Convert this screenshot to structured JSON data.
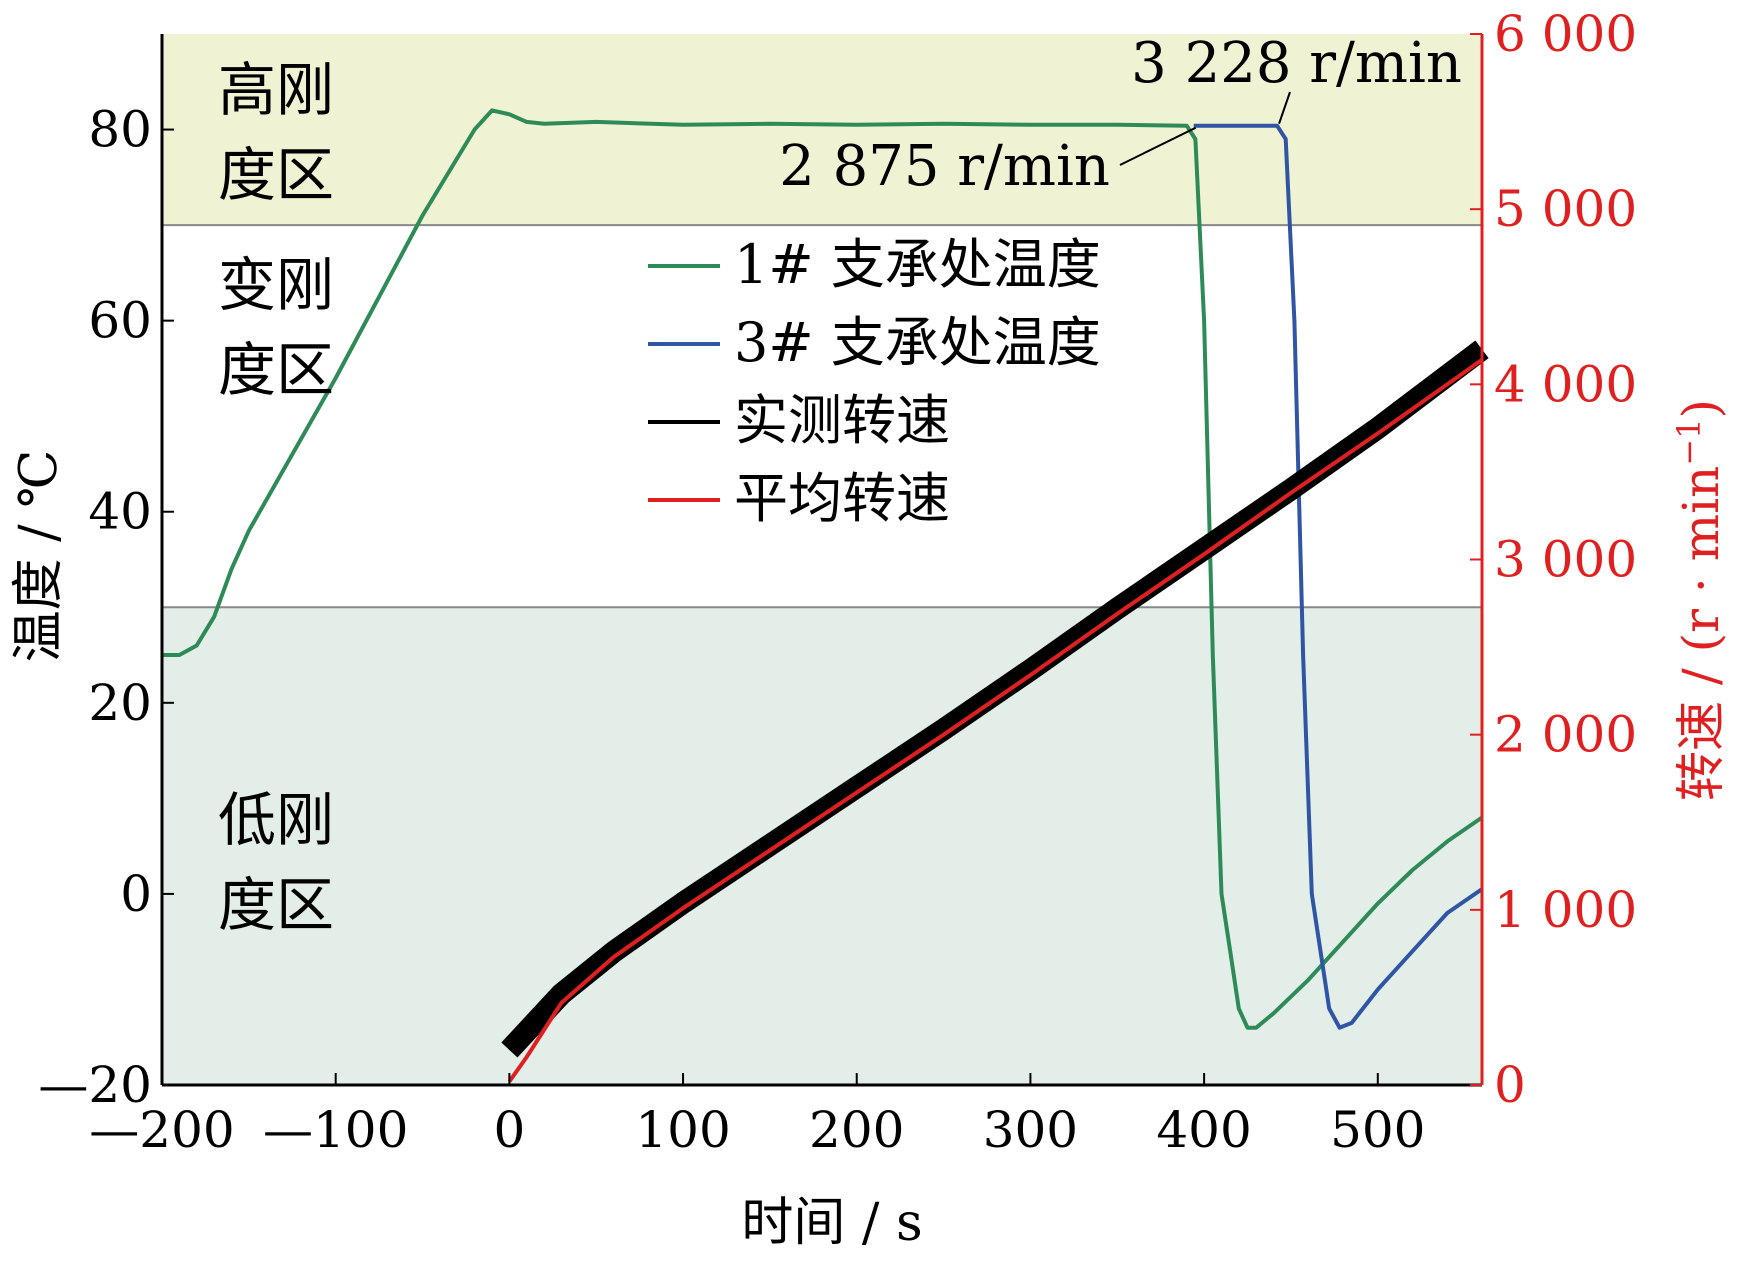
{
  "chart_data": {
    "type": "line",
    "xlabel": "时间 / s",
    "ylabel_left": "温度 / ℃",
    "ylabel_right": "转速 / (r · min",
    "ylabel_right_sup": "−1",
    "ylabel_right_close": ")",
    "xlim": [
      -200,
      560
    ],
    "ylim_left": [
      -20,
      90
    ],
    "ylim_right": [
      0,
      6000
    ],
    "x_ticks": [
      -200,
      -100,
      0,
      100,
      200,
      300,
      400,
      500
    ],
    "x_tick_labels": [
      "—200",
      "—100",
      "0",
      "100",
      "200",
      "300",
      "400",
      "500"
    ],
    "y_left_ticks": [
      -20,
      0,
      20,
      40,
      60,
      80
    ],
    "y_left_tick_labels": [
      "—20",
      "0",
      "20",
      "40",
      "60",
      "80"
    ],
    "y_right_ticks": [
      0,
      1000,
      2000,
      3000,
      4000,
      5000,
      6000
    ],
    "y_right_tick_labels": [
      "0",
      "1 000",
      "2 000",
      "3 000",
      "4 000",
      "5 000",
      "6 000"
    ],
    "zones": [
      {
        "label_line1": "高刚",
        "label_line2": "度区",
        "y_range": [
          70,
          90
        ],
        "color": "#f0f2d4"
      },
      {
        "label_line1": "变刚",
        "label_line2": "度区",
        "y_range": [
          30,
          70
        ],
        "color": "#ffffff"
      },
      {
        "label_line1": "低刚",
        "label_line2": "度区",
        "y_range": [
          -20,
          30
        ],
        "color": "#e4eee9"
      }
    ],
    "annotations": [
      {
        "text": "3 228 r/min",
        "x": 442,
        "y": 80.4
      },
      {
        "text": "2 875 r/min",
        "x": 394,
        "y": 80.4
      }
    ],
    "legend": {
      "placement": "center",
      "items": [
        {
          "label": "1# 支承处温度",
          "color": "#2e8b57"
        },
        {
          "label": "3# 支承处温度",
          "color": "#2f55a4"
        },
        {
          "label": "实测转速",
          "color": "#000000"
        },
        {
          "label": "平均转速",
          "color": "#e02020"
        }
      ]
    },
    "series": [
      {
        "name": "1# 支承处温度",
        "axis": "left",
        "color": "#2e8b57",
        "x": [
          -200,
          -190,
          -180,
          -170,
          -160,
          -150,
          -100,
          -50,
          -20,
          -10,
          0,
          10,
          20,
          50,
          100,
          150,
          200,
          250,
          300,
          350,
          390,
          395,
          400,
          405,
          410,
          415,
          420,
          425,
          430,
          440,
          460,
          480,
          500,
          520,
          540,
          560
        ],
        "y": [
          25,
          25,
          26,
          29,
          34,
          38,
          54,
          71,
          80,
          82,
          81.6,
          80.8,
          80.6,
          80.8,
          80.5,
          80.6,
          80.5,
          80.6,
          80.5,
          80.5,
          80.4,
          79,
          60,
          25,
          0,
          -6,
          -12,
          -14,
          -14,
          -12.5,
          -9,
          -5,
          -1,
          2.5,
          5.5,
          8
        ]
      },
      {
        "name": "3# 支承处温度",
        "axis": "left",
        "color": "#2f55a4",
        "x": [
          394,
          442,
          447,
          452,
          457,
          462,
          467,
          472,
          478,
          485,
          500,
          520,
          540,
          560
        ],
        "y": [
          80.4,
          80.4,
          79,
          60,
          25,
          0,
          -6,
          -12,
          -14,
          -13.5,
          -10,
          -6,
          -2,
          0.5
        ]
      },
      {
        "name": "实测转速",
        "axis": "right",
        "color": "#000000",
        "x": [
          0,
          30,
          60,
          100,
          150,
          200,
          250,
          300,
          350,
          400,
          450,
          500,
          560
        ],
        "y": [
          200,
          520,
          760,
          1040,
          1370,
          1700,
          2030,
          2370,
          2720,
          3060,
          3400,
          3750,
          4200
        ]
      },
      {
        "name": "平均转速",
        "axis": "right",
        "color": "#e02020",
        "x": [
          0,
          10,
          30,
          60,
          100,
          150,
          200,
          250,
          300,
          350,
          400,
          450,
          500,
          560
        ],
        "y": [
          20,
          160,
          470,
          730,
          1010,
          1340,
          1670,
          2000,
          2340,
          2690,
          3030,
          3380,
          3720,
          4140
        ]
      }
    ]
  }
}
